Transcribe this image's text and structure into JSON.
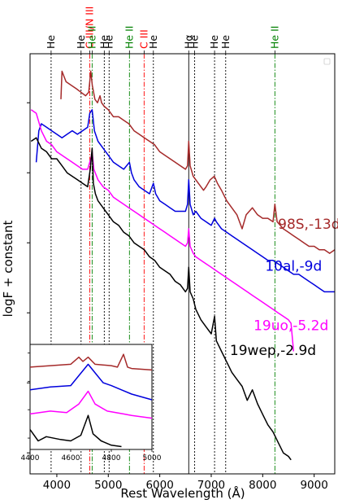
{
  "chart_data": {
    "type": "line",
    "xlabel": "Rest Wavelength (Å)",
    "ylabel": "logF + constant",
    "xlim": [
      3480,
      9400
    ],
    "x_ticks": [
      4000,
      5000,
      6000,
      7000,
      8000,
      9000
    ],
    "y_ticks_shown": false,
    "line_markers": [
      {
        "label": "He",
        "x": 3889,
        "color": "#000000",
        "style": "dotted"
      },
      {
        "label": "He",
        "x": 4471,
        "color": "#000000",
        "style": "dotted"
      },
      {
        "label": "C III/N III",
        "x": 4640,
        "color": "#ff0000",
        "style": "dashdot"
      },
      {
        "label": "He II",
        "x": 4686,
        "color": "#008000",
        "style": "dashdot"
      },
      {
        "label": "He",
        "x": 4922,
        "color": "#000000",
        "style": "dotted"
      },
      {
        "label": "He",
        "x": 5016,
        "color": "#000000",
        "style": "dotted"
      },
      {
        "label": "He II",
        "x": 5411,
        "color": "#008000",
        "style": "dashdot"
      },
      {
        "label": "C III",
        "x": 5696,
        "color": "#ff0000",
        "style": "dashdot"
      },
      {
        "label": "He",
        "x": 5876,
        "color": "#000000",
        "style": "dotted"
      },
      {
        "label": "Hα",
        "x": 6563,
        "color": "#000000",
        "style": "solid"
      },
      {
        "label": "He",
        "x": 6678,
        "color": "#000000",
        "style": "dotted"
      },
      {
        "label": "He",
        "x": 7065,
        "color": "#000000",
        "style": "dotted"
      },
      {
        "label": "He",
        "x": 7281,
        "color": "#000000",
        "style": "dotted"
      },
      {
        "label": "He II",
        "x": 8237,
        "color": "#008000",
        "style": "dashdot"
      }
    ],
    "series": [
      {
        "name": "98S,-13d",
        "color": "#a52a2a",
        "label_pos": [
          8900,
          1.2
        ],
        "x": [
          4080,
          4100,
          4180,
          4280,
          4380,
          4470,
          4560,
          4620,
          4660,
          4690,
          4740,
          4790,
          4840,
          4870,
          4920,
          5000,
          5100,
          5200,
          5300,
          5400,
          5500,
          5600,
          5700,
          5800,
          5900,
          6000,
          6100,
          6200,
          6300,
          6400,
          6500,
          6540,
          6563,
          6590,
          6650,
          6750,
          6850,
          6900,
          6980,
          7060,
          7120,
          7200,
          7300,
          7400,
          7500,
          7600,
          7680,
          7800,
          7900,
          8000,
          8100,
          8200,
          8237,
          8280,
          8400,
          8500,
          8600,
          8700,
          8800,
          8900,
          9000,
          9100,
          9200,
          9300,
          9400
        ],
        "y": [
          3.05,
          3.45,
          3.3,
          3.25,
          3.2,
          3.15,
          3.1,
          3.15,
          3.45,
          3.25,
          3.05,
          3.0,
          3.1,
          3.0,
          2.95,
          2.9,
          2.8,
          2.8,
          2.75,
          2.7,
          2.6,
          2.55,
          2.5,
          2.45,
          2.4,
          2.3,
          2.25,
          2.2,
          2.15,
          2.1,
          2.05,
          2.1,
          2.45,
          2.1,
          1.95,
          1.85,
          1.75,
          1.8,
          1.9,
          1.95,
          1.85,
          1.75,
          1.6,
          1.5,
          1.4,
          1.2,
          1.4,
          1.5,
          1.4,
          1.35,
          1.35,
          1.3,
          1.55,
          1.3,
          1.2,
          1.15,
          1.1,
          1.05,
          1.0,
          0.95,
          0.95,
          0.9,
          0.9,
          0.85,
          0.9
        ]
      },
      {
        "name": "10al,-9d",
        "color": "#0000dd",
        "label_pos": [
          8600,
          0.6
        ],
        "x": [
          3600,
          3650,
          3700,
          3800,
          3900,
          4000,
          4100,
          4200,
          4300,
          4400,
          4500,
          4600,
          4640,
          4686,
          4730,
          4800,
          4900,
          5000,
          5100,
          5200,
          5300,
          5411,
          5450,
          5500,
          5600,
          5700,
          5800,
          5876,
          5920,
          6000,
          6100,
          6200,
          6300,
          6400,
          6500,
          6540,
          6563,
          6590,
          6650,
          6700,
          6800,
          6900,
          7000,
          7065,
          7100,
          7200,
          7300,
          7400,
          7500,
          7600,
          7700,
          7800,
          7900,
          8000,
          8100,
          8200,
          8300,
          8400,
          8500,
          8600,
          8700,
          8800,
          8900,
          9000,
          9100,
          9200,
          9300,
          9400
        ],
        "y": [
          2.15,
          2.6,
          2.7,
          2.65,
          2.6,
          2.55,
          2.5,
          2.55,
          2.6,
          2.55,
          2.6,
          2.65,
          2.85,
          2.9,
          2.6,
          2.45,
          2.35,
          2.25,
          2.15,
          2.1,
          2.05,
          2.15,
          2.0,
          1.9,
          1.8,
          1.75,
          1.7,
          1.85,
          1.7,
          1.6,
          1.55,
          1.5,
          1.45,
          1.45,
          1.45,
          1.55,
          1.9,
          1.55,
          1.4,
          1.45,
          1.35,
          1.3,
          1.25,
          1.35,
          1.3,
          1.2,
          1.15,
          1.1,
          1.05,
          1.0,
          0.95,
          0.9,
          0.85,
          0.8,
          0.75,
          0.75,
          0.7,
          0.65,
          0.6,
          0.55,
          0.55,
          0.5,
          0.45,
          0.4,
          0.35,
          0.3,
          0.3,
          0.3
        ]
      },
      {
        "name": "19uo,-5.2d",
        "color": "#ff00ff",
        "label_pos": [
          8550,
          -0.25
        ],
        "x": [
          3500,
          3600,
          3700,
          3800,
          3900,
          4000,
          4100,
          4200,
          4300,
          4400,
          4500,
          4600,
          4660,
          4686,
          4720,
          4800,
          4900,
          5000,
          5100,
          5200,
          5300,
          5400,
          5500,
          5600,
          5700,
          5800,
          5900,
          6000,
          6100,
          6200,
          6300,
          6400,
          6500,
          6540,
          6563,
          6590,
          6650,
          6700,
          6800,
          6900,
          7000,
          7100,
          7200,
          7300,
          7400,
          7500,
          7600,
          7700,
          7800,
          7900,
          8000,
          8100,
          8200,
          8300,
          8400,
          8500,
          8550,
          8600
        ],
        "y": [
          2.9,
          2.85,
          2.6,
          2.45,
          2.4,
          2.3,
          2.25,
          2.2,
          2.15,
          2.1,
          2.05,
          2.05,
          2.2,
          2.3,
          2.05,
          1.9,
          1.8,
          1.75,
          1.65,
          1.6,
          1.55,
          1.5,
          1.45,
          1.4,
          1.35,
          1.3,
          1.25,
          1.2,
          1.15,
          1.1,
          1.05,
          1.0,
          0.95,
          1.0,
          1.2,
          0.95,
          0.85,
          0.8,
          0.75,
          0.7,
          0.65,
          0.6,
          0.55,
          0.5,
          0.45,
          0.4,
          0.35,
          0.3,
          0.25,
          0.2,
          0.15,
          0.1,
          0.05,
          0.0,
          -0.05,
          -0.1,
          -0.15,
          -0.55
        ]
      },
      {
        "name": "19wep,-2.9d",
        "color": "#000000",
        "label_pos": [
          8200,
          -0.6
        ],
        "x": [
          3500,
          3600,
          3700,
          3800,
          3900,
          4000,
          4100,
          4200,
          4300,
          4400,
          4500,
          4600,
          4650,
          4686,
          4710,
          4750,
          4800,
          4900,
          5000,
          5100,
          5200,
          5300,
          5400,
          5500,
          5600,
          5700,
          5800,
          5900,
          6000,
          6100,
          6200,
          6300,
          6400,
          6500,
          6540,
          6563,
          6590,
          6650,
          6700,
          6800,
          6900,
          7000,
          7065,
          7100,
          7200,
          7300,
          7400,
          7500,
          7600,
          7700,
          7800,
          7900,
          8000,
          8100,
          8200,
          8300,
          8400,
          8500,
          8550
        ],
        "y": [
          2.45,
          2.5,
          2.35,
          2.3,
          2.2,
          2.2,
          2.1,
          2.0,
          1.95,
          1.9,
          1.85,
          1.8,
          2.05,
          2.35,
          1.85,
          1.7,
          1.6,
          1.5,
          1.4,
          1.3,
          1.25,
          1.15,
          1.1,
          1.0,
          0.95,
          0.9,
          0.8,
          0.75,
          0.65,
          0.6,
          0.55,
          0.45,
          0.4,
          0.3,
          0.35,
          0.65,
          0.3,
          0.2,
          0.05,
          -0.1,
          -0.2,
          -0.3,
          -0.05,
          -0.4,
          -0.55,
          -0.7,
          -0.85,
          -0.95,
          -1.05,
          -1.25,
          -1.1,
          -1.3,
          -1.45,
          -1.6,
          -1.7,
          -1.85,
          -2.0,
          -2.05,
          -2.1
        ]
      }
    ],
    "inset": {
      "xlim": [
        4400,
        5000
      ],
      "x_ticks": [
        4400,
        4600,
        4800,
        5000
      ],
      "series": [
        {
          "color": "#a52a2a",
          "x": [
            4400,
            4500,
            4600,
            4640,
            4660,
            4686,
            4720,
            4800,
            4830,
            4860,
            4880,
            4900,
            5000
          ],
          "y": [
            3.5,
            3.55,
            3.6,
            3.85,
            3.7,
            3.85,
            3.6,
            3.55,
            3.5,
            3.95,
            3.5,
            3.45,
            3.4
          ]
        },
        {
          "color": "#0000dd",
          "x": [
            4400,
            4500,
            4600,
            4640,
            4686,
            4720,
            4760,
            4800,
            4850,
            4900,
            5000
          ],
          "y": [
            2.7,
            2.8,
            2.85,
            3.2,
            3.6,
            3.3,
            2.95,
            2.85,
            2.7,
            2.55,
            2.35
          ]
        },
        {
          "color": "#ff00ff",
          "x": [
            4400,
            4500,
            4580,
            4640,
            4686,
            4720,
            4780,
            4860,
            4900,
            5000
          ],
          "y": [
            1.85,
            1.95,
            1.9,
            2.2,
            2.65,
            2.2,
            1.95,
            1.85,
            1.8,
            1.7
          ]
        },
        {
          "color": "#000000",
          "x": [
            4400,
            4440,
            4480,
            4550,
            4600,
            4650,
            4686,
            4710,
            4750,
            4800,
            4850
          ],
          "y": [
            1.3,
            0.9,
            1.05,
            0.95,
            0.9,
            1.1,
            1.8,
            1.15,
            0.9,
            0.75,
            0.7
          ]
        }
      ]
    }
  }
}
